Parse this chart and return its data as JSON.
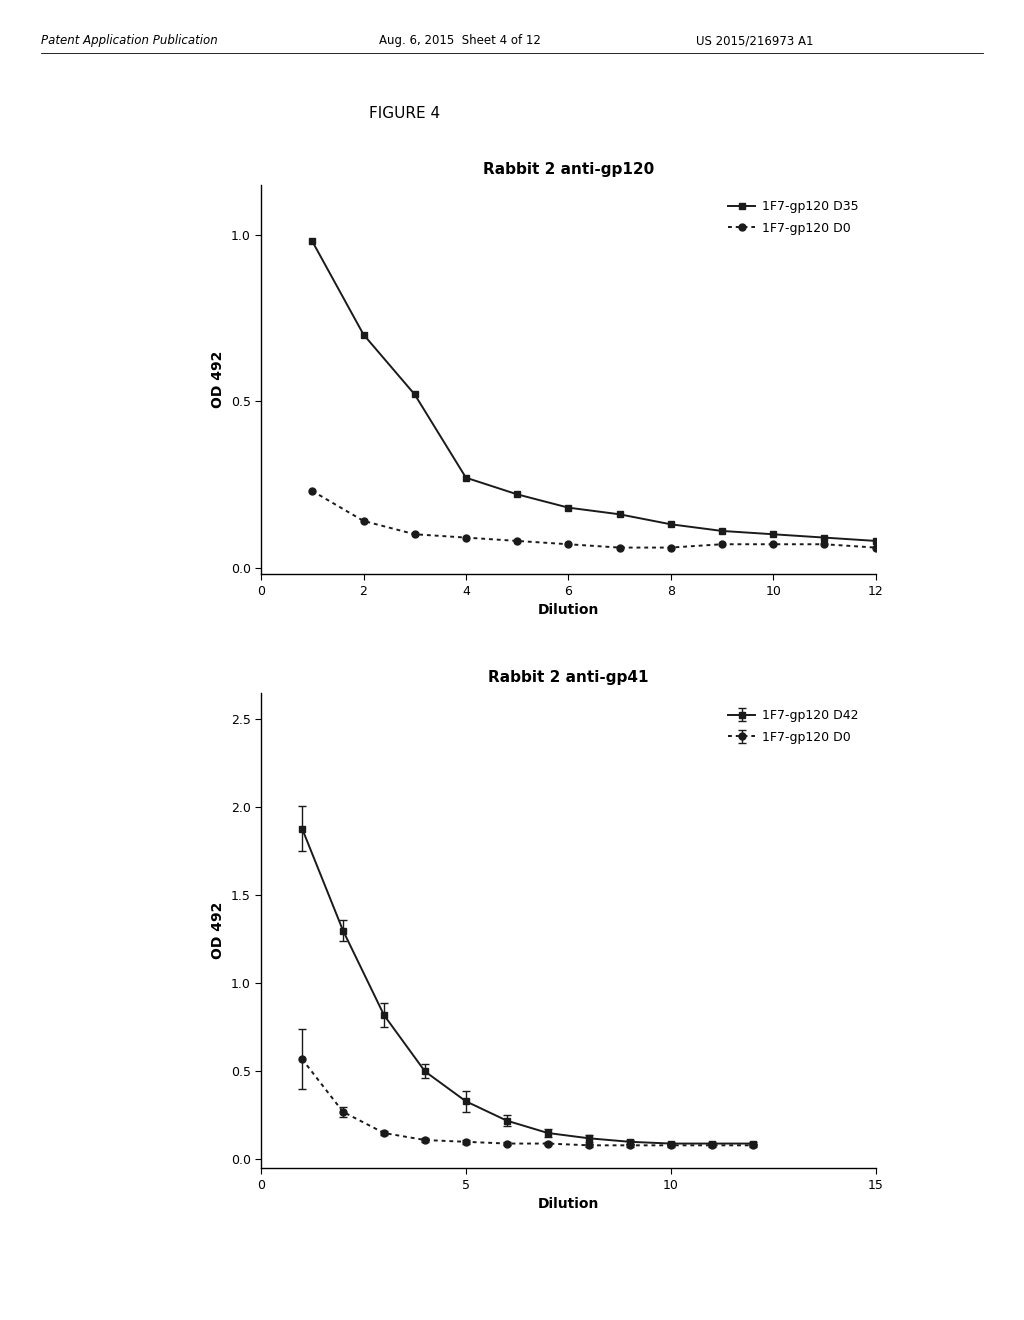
{
  "fig_label": "FIGURE 4",
  "header_left": "Patent Application Publication",
  "header_mid": "Aug. 6, 2015  Sheet 4 of 12",
  "header_right": "US 2015/216973 A1",
  "plot1": {
    "title": "Rabbit 2 anti-gp120",
    "ylabel": "OD 492",
    "xlabel": "Dilution",
    "xlim": [
      0,
      12
    ],
    "ylim": [
      -0.02,
      1.15
    ],
    "yticks": [
      0.0,
      0.5,
      1.0
    ],
    "yticklabels": [
      "0.0",
      "0.5",
      "1.0"
    ],
    "xticks": [
      0,
      2,
      4,
      6,
      8,
      10,
      12
    ],
    "series1_label": "1F7-gp120 D35",
    "series1_x": [
      1,
      2,
      3,
      4,
      5,
      6,
      7,
      8,
      9,
      10,
      11,
      12
    ],
    "series1_y": [
      0.98,
      0.7,
      0.52,
      0.27,
      0.22,
      0.18,
      0.16,
      0.13,
      0.11,
      0.1,
      0.09,
      0.08
    ],
    "series1_style": "solid",
    "series1_marker": "s",
    "series2_label": "1F7-gp120 D0",
    "series2_x": [
      1,
      2,
      3,
      4,
      5,
      6,
      7,
      8,
      9,
      10,
      11,
      12
    ],
    "series2_y": [
      0.23,
      0.14,
      0.1,
      0.09,
      0.08,
      0.07,
      0.06,
      0.06,
      0.07,
      0.07,
      0.07,
      0.06
    ],
    "series2_style": "dotted",
    "series2_marker": "o"
  },
  "plot2": {
    "title": "Rabbit 2 anti-gp41",
    "ylabel": "OD 492",
    "xlabel": "Dilution",
    "xlim": [
      0,
      15
    ],
    "ylim": [
      -0.05,
      2.65
    ],
    "yticks": [
      0.0,
      0.5,
      1.0,
      1.5,
      2.0,
      2.5
    ],
    "yticklabels": [
      "0.0",
      "0.5",
      "1.0",
      "1.5",
      "2.0",
      "2.5"
    ],
    "xticks": [
      0,
      5,
      10,
      15
    ],
    "series1_label": "1F7-gp120 D42",
    "series1_x": [
      1,
      2,
      3,
      4,
      5,
      6,
      7,
      8,
      9,
      10,
      11,
      12
    ],
    "series1_y": [
      1.88,
      1.3,
      0.82,
      0.5,
      0.33,
      0.22,
      0.15,
      0.12,
      0.1,
      0.09,
      0.09,
      0.09
    ],
    "series1_yerr": [
      0.13,
      0.06,
      0.07,
      0.04,
      0.06,
      0.03,
      0.02,
      0.02,
      0.01,
      0.01,
      0.01,
      0.01
    ],
    "series1_style": "solid",
    "series1_marker": "s",
    "series2_label": "1F7-gp120 D0",
    "series2_x": [
      1,
      2,
      3,
      4,
      5,
      6,
      7,
      8,
      9,
      10,
      11,
      12
    ],
    "series2_y": [
      0.57,
      0.27,
      0.15,
      0.11,
      0.1,
      0.09,
      0.09,
      0.08,
      0.08,
      0.08,
      0.08,
      0.08
    ],
    "series2_yerr": [
      0.17,
      0.03,
      0.01,
      0.01,
      0.01,
      0.01,
      0.01,
      0.01,
      0.01,
      0.01,
      0.01,
      0.01
    ],
    "series2_style": "dotted",
    "series2_marker": "o"
  },
  "line_color": "#1a1a1a",
  "bg_color": "#ffffff",
  "title_fontsize": 11,
  "axis_label_fontsize": 10,
  "tick_fontsize": 9,
  "legend_fontsize": 9,
  "header_fontsize": 8.5
}
